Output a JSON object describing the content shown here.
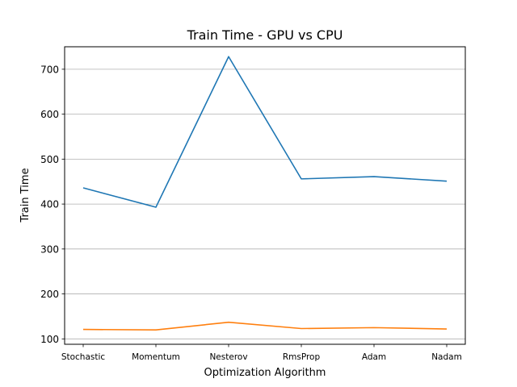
{
  "chart_data": {
    "type": "line",
    "title": "Train Time - GPU vs CPU",
    "xlabel": "Optimization Algorithm",
    "ylabel": "Train Time",
    "categories": [
      "Stochastic",
      "Momentum",
      "Nesterov",
      "RmsProp",
      "Adam",
      "Nadam"
    ],
    "ylim": [
      88,
      750
    ],
    "yticks": [
      100,
      200,
      300,
      400,
      500,
      600,
      700
    ],
    "grid": "horizontal",
    "series": [
      {
        "values": [
          436,
          393,
          728,
          456,
          461,
          451
        ],
        "color": "#1f77b4"
      },
      {
        "values": [
          121,
          120,
          137,
          123,
          125,
          122
        ],
        "color": "#ff7f0e"
      }
    ]
  }
}
